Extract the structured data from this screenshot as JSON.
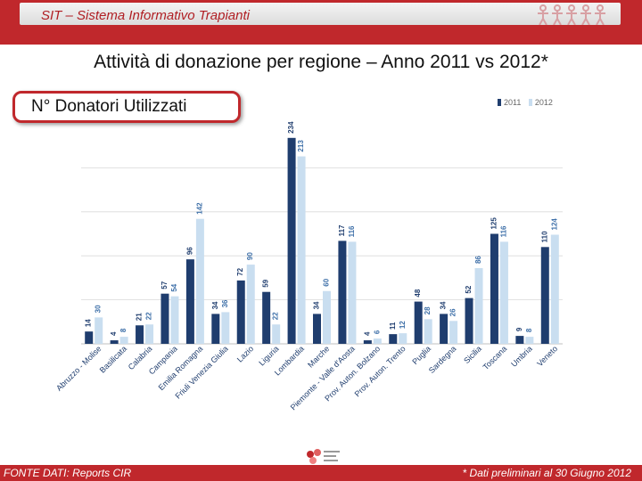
{
  "header": {
    "title": "SIT – Sistema Informativo Trapianti"
  },
  "main_title": "Attività di donazione per regione – Anno 2011 vs 2012*",
  "subtitle": "N° Donatori Utilizzati",
  "colors": {
    "brand_red": "#c0282c",
    "series_2011": "#1f3d6e",
    "series_2012": "#c9def0"
  },
  "chart_data": {
    "type": "bar",
    "title": "N° Donatori Utilizzati",
    "xlabel": "",
    "ylabel": "",
    "ylim": [
      0,
      240
    ],
    "grid": true,
    "legend": "top-right",
    "categories": [
      "Abruzzo - Molise",
      "Basilicata",
      "Calabria",
      "Campania",
      "Emilia Romagna",
      "Friuli Venezia Giulia",
      "Lazio",
      "Liguria",
      "Lombardia",
      "Marche",
      "Piemonte - Valle d'Aosta",
      "Prov. Auton. Bolzano",
      "Prov. Auton. Trento",
      "Puglia",
      "Sardegna",
      "Sicilia",
      "Toscana",
      "Umbria",
      "Veneto"
    ],
    "series": [
      {
        "name": "2011",
        "values": [
          14,
          4,
          21,
          57,
          96,
          34,
          72,
          59,
          234,
          34,
          117,
          4,
          11,
          48,
          34,
          52,
          125,
          9,
          110
        ]
      },
      {
        "name": "2012",
        "values": [
          30,
          8,
          22,
          54,
          142,
          36,
          90,
          22,
          213,
          60,
          116,
          6,
          12,
          28,
          26,
          86,
          116,
          8,
          124
        ]
      }
    ]
  },
  "footer": {
    "source": "FONTE DATI:  Reports CIR",
    "note": "* Dati  preliminari al 30 Giugno 2012"
  }
}
